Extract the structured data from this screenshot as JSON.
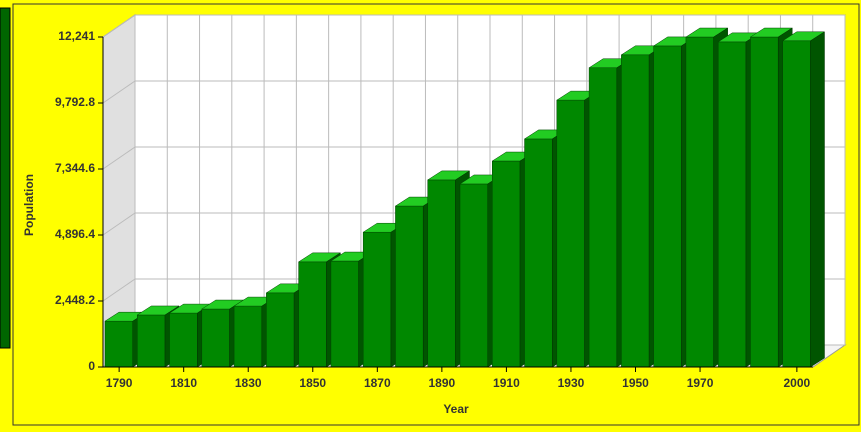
{
  "chart_data": {
    "type": "bar3d",
    "x_label": "Year",
    "y_label": "Population",
    "categories": [
      "1790",
      null,
      "1810",
      null,
      "1830",
      null,
      "1850",
      null,
      "1870",
      null,
      "1890",
      null,
      "1910",
      null,
      "1930",
      null,
      "1950",
      null,
      "1970",
      null,
      null,
      "2000"
    ],
    "values": [
      1700,
      1930,
      2000,
      2150,
      2260,
      2750,
      3900,
      3930,
      5000,
      5970,
      6940,
      6790,
      7640,
      8460,
      9900,
      11100,
      11580,
      11910,
      12240,
      12060,
      12240,
      12100
    ],
    "color": "#008800",
    "ylim": [
      0,
      12241
    ],
    "yticks": [
      0,
      {
        "value": 2448.2,
        "label": "2,448.2"
      },
      {
        "value": 4896.4,
        "label": "4,896.4"
      },
      {
        "value": 7344.6,
        "label": "7,344.6"
      },
      {
        "value": 9792.8,
        "label": "9,792.8"
      },
      {
        "value": 12241,
        "label": "12,241"
      }
    ],
    "grid": true
  }
}
